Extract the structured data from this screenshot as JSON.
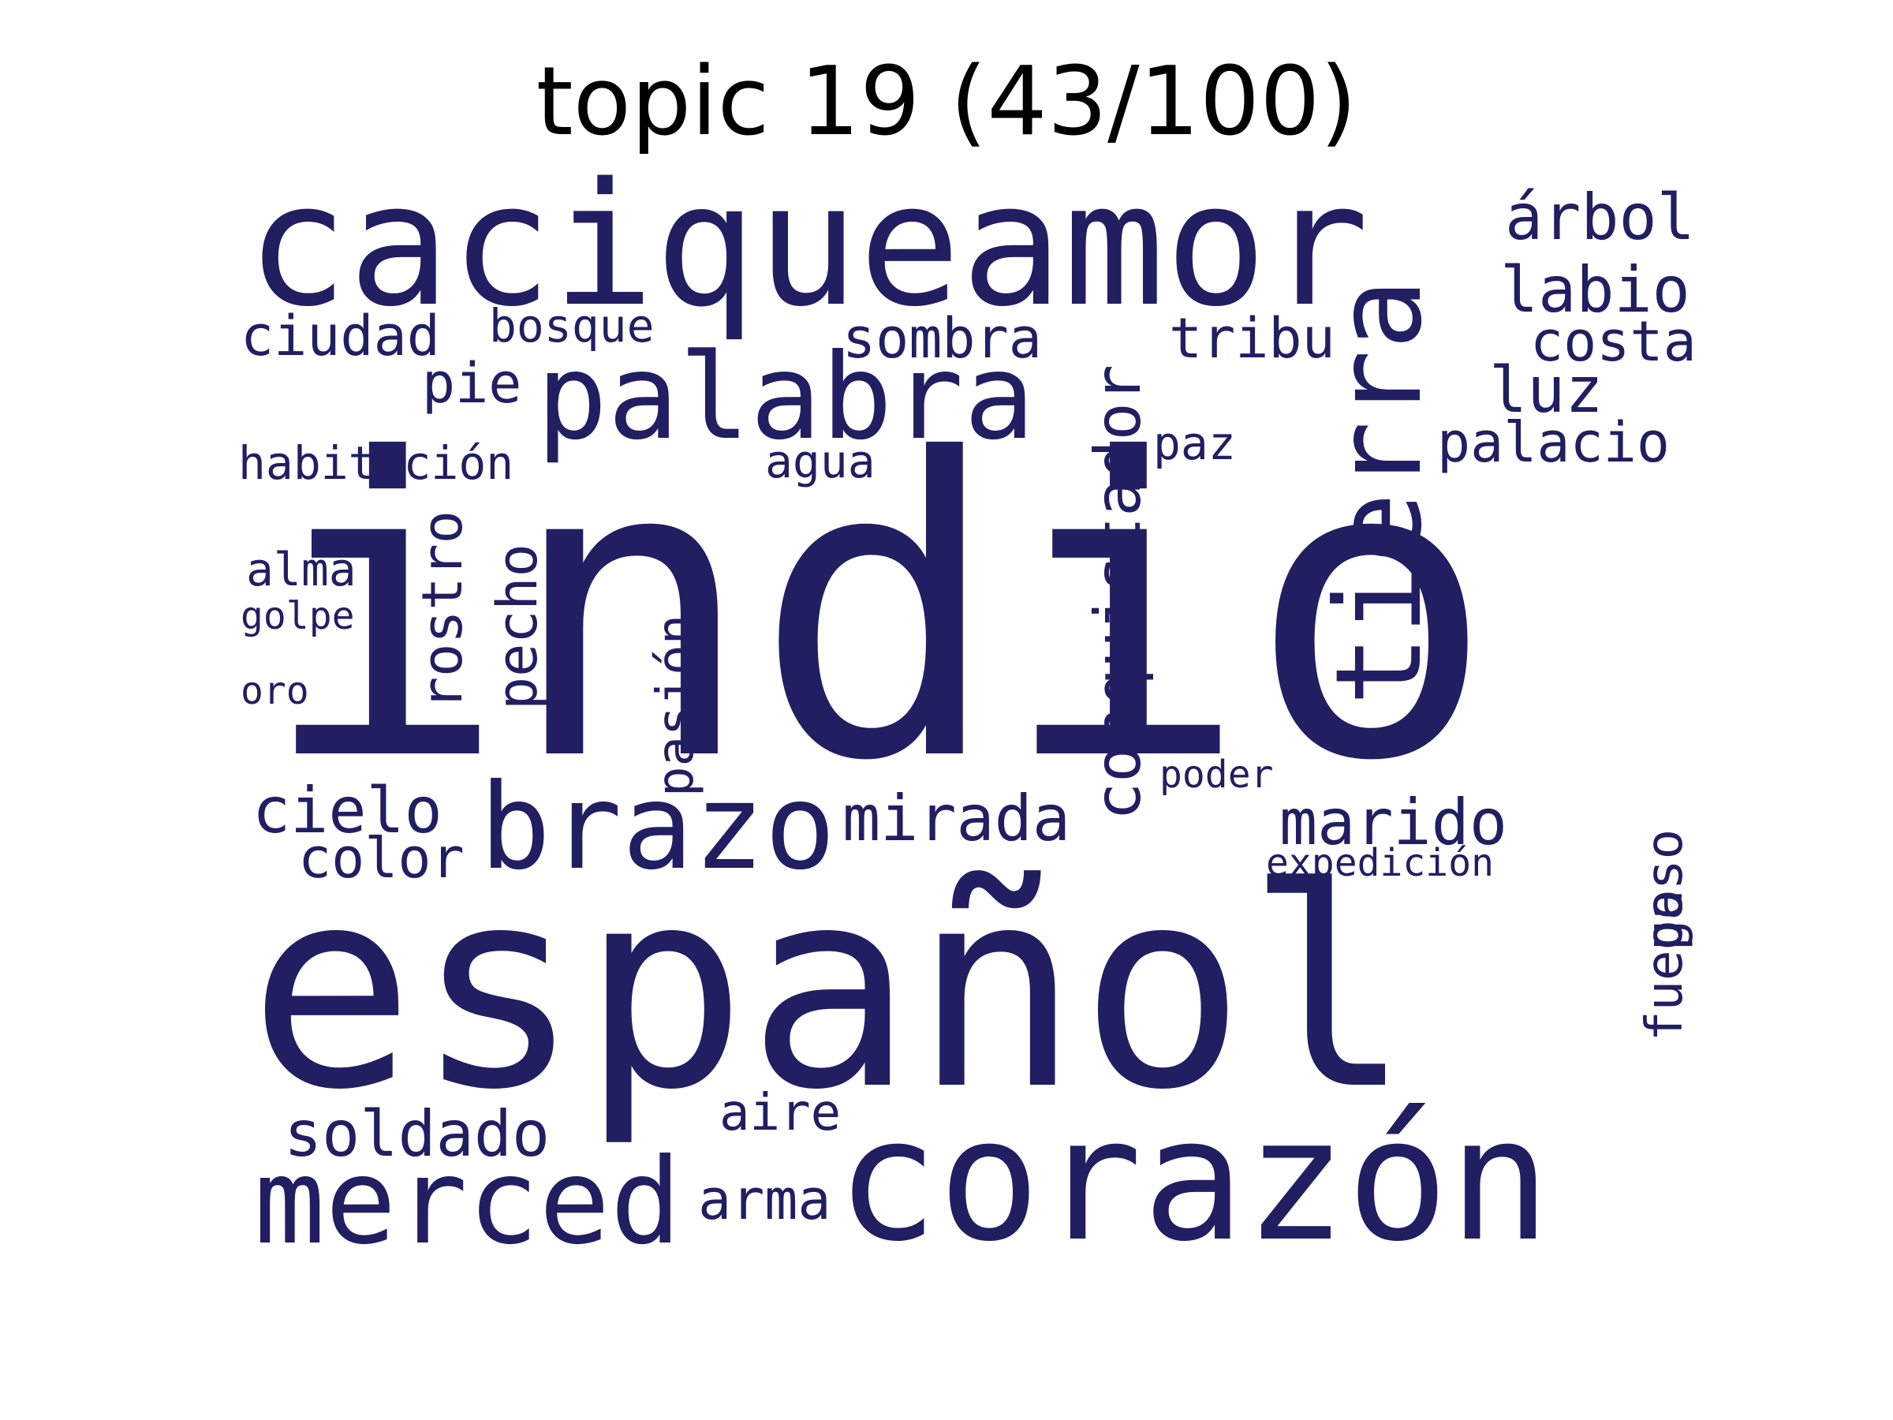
{
  "title": "topic 19 (43/100)",
  "color": "#221e62",
  "words": [
    {
      "id": "indio",
      "text": "indio"
    },
    {
      "id": "espanol",
      "text": "español"
    },
    {
      "id": "caciqueamor",
      "text": "caciqueamor"
    },
    {
      "id": "corazon",
      "text": "corazón"
    },
    {
      "id": "palabra",
      "text": "palabra"
    },
    {
      "id": "tierra",
      "text": "tierra"
    },
    {
      "id": "brazo",
      "text": "brazo"
    },
    {
      "id": "merced",
      "text": "merced"
    },
    {
      "id": "conquistador",
      "text": "conquistador"
    },
    {
      "id": "arbol",
      "text": "árbol"
    },
    {
      "id": "labio",
      "text": "labio"
    },
    {
      "id": "costa",
      "text": "costa"
    },
    {
      "id": "luz",
      "text": "luz"
    },
    {
      "id": "palacio",
      "text": "palacio"
    },
    {
      "id": "ciudad",
      "text": "ciudad"
    },
    {
      "id": "bosque",
      "text": "bosque"
    },
    {
      "id": "sombra",
      "text": "sombra"
    },
    {
      "id": "tribu",
      "text": "tribu"
    },
    {
      "id": "pie",
      "text": "pie"
    },
    {
      "id": "habitacion",
      "text": "habitación"
    },
    {
      "id": "agua",
      "text": "agua"
    },
    {
      "id": "paz",
      "text": "paz"
    },
    {
      "id": "rostro",
      "text": "rostro"
    },
    {
      "id": "pecho",
      "text": "pecho"
    },
    {
      "id": "pasion",
      "text": "pasión"
    },
    {
      "id": "alma",
      "text": "alma"
    },
    {
      "id": "golpe",
      "text": "golpe"
    },
    {
      "id": "oro",
      "text": "oro"
    },
    {
      "id": "cielo",
      "text": "cielo"
    },
    {
      "id": "color",
      "text": "color"
    },
    {
      "id": "mirada",
      "text": "mirada"
    },
    {
      "id": "poder",
      "text": "poder"
    },
    {
      "id": "marido",
      "text": "marido"
    },
    {
      "id": "expedicion",
      "text": "expedición"
    },
    {
      "id": "paso",
      "text": "paso"
    },
    {
      "id": "fuego",
      "text": "fuego"
    },
    {
      "id": "soldado",
      "text": "soldado"
    },
    {
      "id": "aire",
      "text": "aire"
    },
    {
      "id": "arma",
      "text": "arma"
    }
  ]
}
